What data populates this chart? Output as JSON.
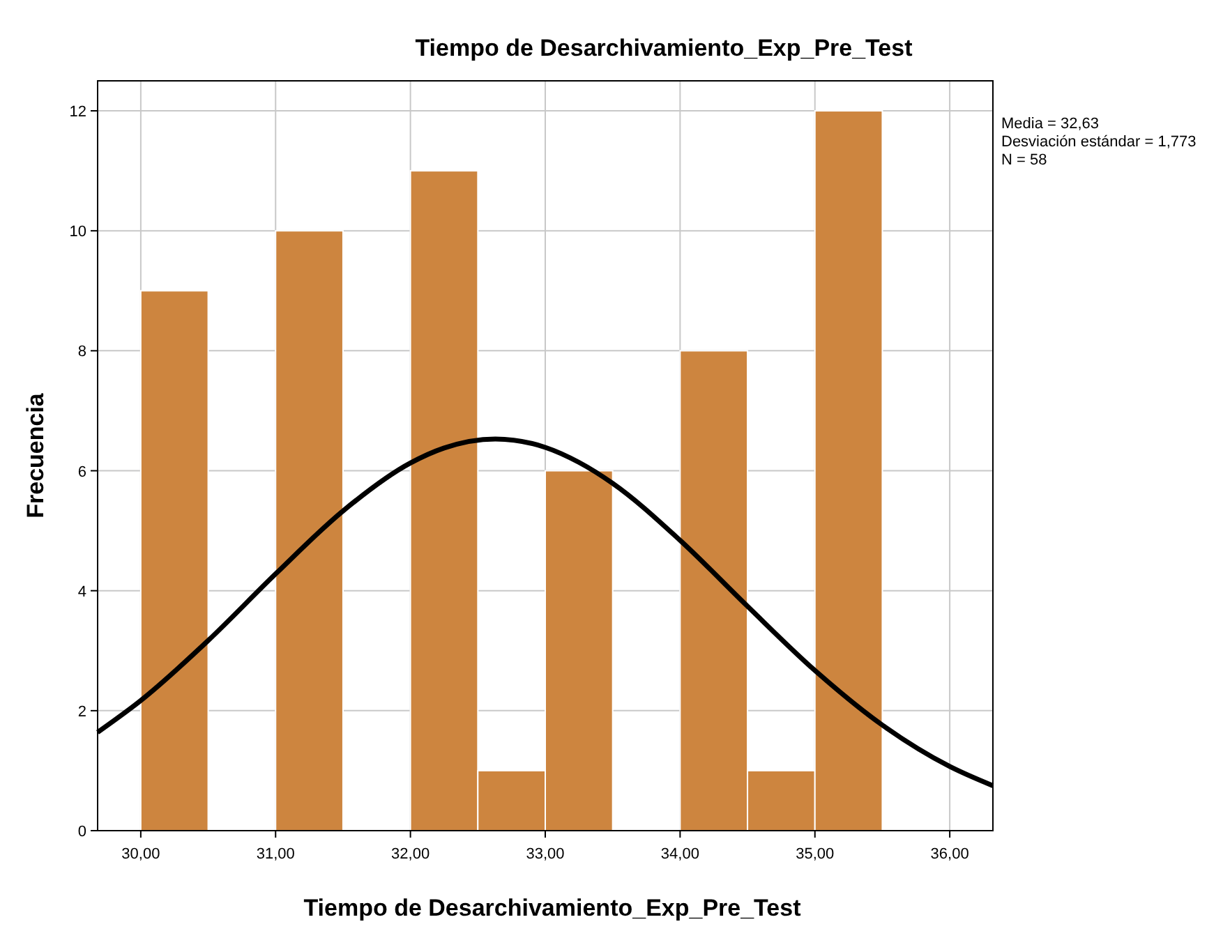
{
  "chart_data": {
    "type": "histogram",
    "title": "Tiempo de Desarchivamiento_Exp_Pre_Test",
    "xlabel": "Tiempo de Desarchivamiento_Exp_Pre_Test",
    "ylabel": "Frecuencia",
    "bins": [
      30,
      30.5,
      31,
      31.5,
      32,
      32.5,
      33,
      33.5,
      34,
      34.5,
      35,
      35.5
    ],
    "values": [
      9,
      0,
      10,
      0,
      11,
      1,
      6,
      0,
      8,
      1,
      12
    ],
    "color": "#cd853f",
    "series": [
      {
        "type": "line",
        "color": "#000000",
        "x": [
          29.68,
          30,
          30.5,
          31,
          31.5,
          32,
          32.25,
          32.63,
          33,
          33.25,
          33.5,
          34,
          34.5,
          35,
          35.5,
          36,
          36.32
        ],
        "values": [
          1.64,
          2.17,
          3.17,
          4.28,
          5.33,
          6.13,
          6.38,
          6.53,
          6.39,
          6.14,
          5.79,
          4.84,
          3.74,
          2.67,
          1.76,
          1.07,
          0.75
        ]
      }
    ],
    "xlim": [
      29.68,
      36.32
    ],
    "ylim": [
      0,
      12.5
    ],
    "xticks": [
      {
        "value": 30,
        "label": "30,00"
      },
      {
        "value": 31,
        "label": "31,00"
      },
      {
        "value": 32,
        "label": "32,00"
      },
      {
        "value": 33,
        "label": "33,00"
      },
      {
        "value": 34,
        "label": "34,00"
      },
      {
        "value": 35,
        "label": "35,00"
      },
      {
        "value": 36,
        "label": "36,00"
      }
    ],
    "yticks": [
      0,
      2,
      4,
      6,
      8,
      10,
      12
    ],
    "grid": true,
    "annotations": [
      "Media = 32,63",
      "Desviación estándar = 1,773",
      "N = 58"
    ]
  }
}
